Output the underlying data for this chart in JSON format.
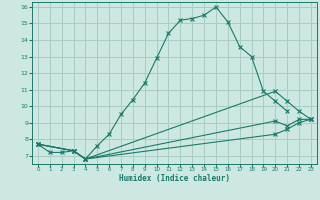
{
  "xlabel": "Humidex (Indice chaleur)",
  "bg_color": "#cce8e0",
  "grid_color": "#aaccC4",
  "line_color": "#1a7a6a",
  "xlim": [
    -0.5,
    23.5
  ],
  "ylim": [
    6.5,
    16.3
  ],
  "xticks": [
    0,
    1,
    2,
    3,
    4,
    5,
    6,
    7,
    8,
    9,
    10,
    11,
    12,
    13,
    14,
    15,
    16,
    17,
    18,
    19,
    20,
    21,
    22,
    23
  ],
  "yticks": [
    7,
    8,
    9,
    10,
    11,
    12,
    13,
    14,
    15,
    16
  ],
  "line1_x": [
    0,
    1,
    2,
    3,
    4,
    5,
    6,
    7,
    8,
    9,
    10,
    11,
    12,
    13,
    14,
    15,
    16,
    17,
    18,
    19,
    20,
    21
  ],
  "line1_y": [
    7.7,
    7.2,
    7.2,
    7.3,
    6.8,
    7.6,
    8.3,
    9.5,
    10.4,
    11.4,
    12.9,
    14.4,
    15.2,
    15.3,
    15.5,
    16.0,
    15.1,
    13.6,
    13.0,
    10.9,
    10.3,
    9.7
  ],
  "line2_x": [
    0,
    3,
    4,
    20,
    21,
    22,
    23
  ],
  "line2_y": [
    7.7,
    7.3,
    6.8,
    10.9,
    10.3,
    9.7,
    9.2
  ],
  "line3_x": [
    0,
    3,
    4,
    20,
    21,
    22,
    23
  ],
  "line3_y": [
    7.7,
    7.3,
    6.8,
    9.1,
    8.8,
    9.2,
    9.2
  ],
  "line4_x": [
    0,
    3,
    4,
    20,
    21,
    22,
    23
  ],
  "line4_y": [
    7.7,
    7.3,
    6.8,
    8.3,
    8.6,
    9.0,
    9.2
  ]
}
